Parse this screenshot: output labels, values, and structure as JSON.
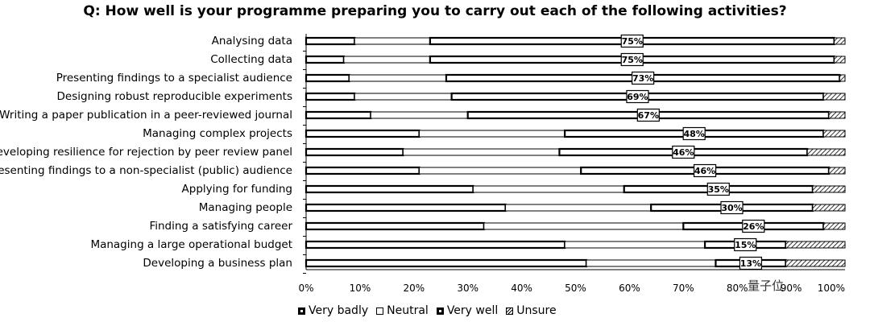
{
  "chart_data": {
    "type": "bar",
    "stacked": true,
    "orientation": "horizontal",
    "title": "Q: How well is your programme preparing you to carry out each of the following activities?",
    "categories": [
      "Analysing data",
      "Collecting data",
      "Presenting findings to a specialist audience",
      "Designing robust reproducible experiments",
      "Writing a paper publication in a peer-reviewed journal",
      "Managing complex projects",
      "Developing resilience for rejection by peer review panel",
      "Presenting findings to a non-specialist (public) audience",
      "Applying for funding",
      "Managing people",
      "Finding a satisfying career",
      "Managing a large operational budget",
      "Developing a business plan"
    ],
    "series": [
      {
        "name": "Very badly",
        "values": [
          9,
          7,
          8,
          9,
          12,
          21,
          18,
          21,
          31,
          37,
          33,
          48,
          52
        ]
      },
      {
        "name": "Neutral",
        "values": [
          14,
          16,
          18,
          18,
          18,
          27,
          29,
          30,
          28,
          27,
          37,
          26,
          24
        ]
      },
      {
        "name": "Very well",
        "values": [
          75,
          75,
          73,
          69,
          67,
          48,
          46,
          46,
          35,
          30,
          26,
          15,
          13
        ]
      },
      {
        "name": "Unsure",
        "values": [
          2,
          2,
          1,
          4,
          3,
          4,
          7,
          3,
          6,
          6,
          4,
          11,
          11
        ]
      }
    ],
    "data_labels": [
      "75%",
      "75%",
      "73%",
      "69%",
      "67%",
      "48%",
      "46%",
      "46%",
      "35%",
      "30%",
      "26%",
      "15%",
      "13%"
    ],
    "xlim": [
      0,
      100
    ],
    "x_ticks": [
      "0%",
      "10%",
      "20%",
      "30%",
      "40%",
      "50%",
      "60%",
      "70%",
      "80%",
      "90%",
      "100%"
    ],
    "legend_position": "bottom-left",
    "grid": false
  },
  "watermark": "量子位"
}
